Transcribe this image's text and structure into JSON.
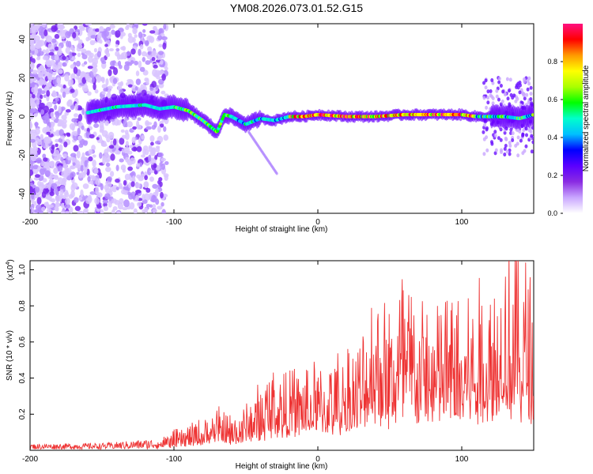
{
  "title": "YM08.2026.073.01.52.G15",
  "chart_data": [
    {
      "type": "heatmap",
      "xlabel": "Height of straight line (km)",
      "ylabel": "Frequency (Hz)",
      "xlim": [
        -200,
        150
      ],
      "ylim": [
        -50,
        48
      ],
      "xticks": [
        -200,
        -100,
        0,
        100
      ],
      "yticks": [
        -40,
        -20,
        0,
        20,
        40
      ],
      "colorbar": {
        "label": "Normalized spectral amplitude",
        "range": [
          0,
          1
        ],
        "ticks": [
          "0.0",
          "0.2",
          "0.4",
          "0.6",
          "0.8"
        ],
        "colors": [
          "#ffffff",
          "#c9a6ff",
          "#8a2be2",
          "#5a00ff",
          "#0000ff",
          "#00bfff",
          "#00ffcc",
          "#00ff00",
          "#aaff00",
          "#ffff00",
          "#ff9900",
          "#ff0000",
          "#ff1080"
        ]
      },
      "ridge": {
        "x": [
          -180,
          -160,
          -140,
          -120,
          -110,
          -100,
          -90,
          -80,
          -70,
          -65,
          -60,
          -50,
          -40,
          -30,
          -20,
          -10,
          0,
          20,
          40,
          60,
          80,
          100,
          110,
          120,
          130,
          140,
          150
        ],
        "y": [
          0,
          2,
          5,
          6,
          4,
          5,
          3,
          -2,
          -8,
          1,
          0,
          -4,
          -1,
          -2,
          0,
          0,
          1,
          0,
          0,
          1,
          1,
          1,
          0,
          0,
          0,
          -1,
          1
        ]
      }
    },
    {
      "type": "line",
      "xlabel": "Height of straight line (km)",
      "ylabel": "SNR (10 * v/v)",
      "yunit": "(x10",
      "yunit_exp": "4",
      "yunit_close": ")",
      "xlim": [
        -200,
        150
      ],
      "ylim": [
        0,
        1.05
      ],
      "xticks": [
        -200,
        -100,
        0,
        100
      ],
      "yticks": [
        0.2,
        0.4,
        0.6,
        0.8,
        1.0
      ],
      "color": "#ee3333",
      "envelope": {
        "x": [
          -200,
          -150,
          -110,
          -100,
          -90,
          -80,
          -70,
          -60,
          -50,
          -40,
          -30,
          -20,
          -10,
          0,
          10,
          20,
          30,
          40,
          50,
          60,
          70,
          80,
          90,
          100,
          110,
          120,
          130,
          140,
          150
        ],
        "y": [
          0.03,
          0.035,
          0.06,
          0.09,
          0.12,
          0.15,
          0.2,
          0.17,
          0.22,
          0.32,
          0.42,
          0.38,
          0.4,
          0.42,
          0.45,
          0.5,
          0.55,
          0.85,
          0.7,
          0.9,
          0.75,
          0.7,
          0.8,
          0.75,
          0.8,
          0.85,
          1.0,
          0.95,
          0.85
        ]
      }
    }
  ]
}
